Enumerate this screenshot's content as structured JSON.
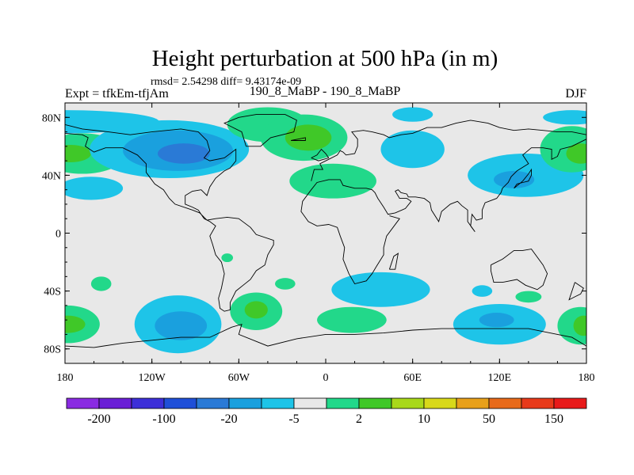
{
  "chart_data": {
    "type": "heatmap",
    "title": "Height perturbation at 500 hPa (in m)",
    "stats_line": "rmsd= 2.54298 diff= 9.43174e-09",
    "left_label": "Expt = tfkEm-tfjAm",
    "center_label": "190_8_MaBP - 190_8_MaBP",
    "right_label": "DJF",
    "x_ticks": [
      {
        "value": -180,
        "label": "180"
      },
      {
        "value": -120,
        "label": "120W"
      },
      {
        "value": -60,
        "label": "60W"
      },
      {
        "value": 0,
        "label": "0"
      },
      {
        "value": 60,
        "label": "60E"
      },
      {
        "value": 120,
        "label": "120E"
      },
      {
        "value": 180,
        "label": "180"
      }
    ],
    "y_ticks": [
      {
        "value": 80,
        "label": "80N"
      },
      {
        "value": 40,
        "label": "40N"
      },
      {
        "value": 0,
        "label": "0"
      },
      {
        "value": -40,
        "label": "40S"
      },
      {
        "value": -80,
        "label": "80S"
      }
    ],
    "xlim": [
      -180,
      180
    ],
    "ylim": [
      -90,
      90
    ],
    "colorbar": {
      "colors": [
        "#8a2be2",
        "#6a1fd6",
        "#3d2fd8",
        "#1f4fd8",
        "#2a7ad6",
        "#1aa0de",
        "#1ec4e8",
        "#e8e8e8",
        "#22d88a",
        "#40c828",
        "#a8d81a",
        "#d8d81a",
        "#e8a01a",
        "#e86a1a",
        "#e83a1a",
        "#e81a1a"
      ],
      "labels": [
        {
          "boundary": 1,
          "text": "-200"
        },
        {
          "boundary": 3,
          "text": "-100"
        },
        {
          "boundary": 5,
          "text": "-20"
        },
        {
          "boundary": 7,
          "text": "-5"
        },
        {
          "boundary": 9,
          "text": "2"
        },
        {
          "boundary": 11,
          "text": "10"
        },
        {
          "boundary": 13,
          "text": "50"
        },
        {
          "boundary": 15,
          "text": "150"
        }
      ]
    },
    "colors": {
      "background": "#e8e8e8",
      "neg_light": "#1ec4e8",
      "neg_mid": "#1aa0de",
      "neg_strong": "#2a7ad6",
      "pos_light": "#22d88a",
      "pos_mid": "#40c828"
    },
    "regions": [
      {
        "lon": -180,
        "lat": 77,
        "rx": 65,
        "ry": 8,
        "color": "#1ec4e8"
      },
      {
        "lon": -168,
        "lat": 55,
        "rx": 30,
        "ry": 14,
        "color": "#22d88a"
      },
      {
        "lon": -176,
        "lat": 55,
        "rx": 14,
        "ry": 6,
        "color": "#40c828"
      },
      {
        "lon": -108,
        "lat": 58,
        "rx": 55,
        "ry": 20,
        "color": "#1ec4e8"
      },
      {
        "lon": -102,
        "lat": 57,
        "rx": 38,
        "ry": 14,
        "color": "#1aa0de"
      },
      {
        "lon": -98,
        "lat": 55,
        "rx": 18,
        "ry": 7,
        "color": "#2a7ad6"
      },
      {
        "lon": -162,
        "lat": 31,
        "rx": 22,
        "ry": 8,
        "color": "#1ec4e8"
      },
      {
        "lon": -40,
        "lat": 75,
        "rx": 28,
        "ry": 12,
        "color": "#22d88a"
      },
      {
        "lon": -15,
        "lat": 66,
        "rx": 30,
        "ry": 16,
        "color": "#22d88a"
      },
      {
        "lon": -12,
        "lat": 66,
        "rx": 16,
        "ry": 9,
        "color": "#40c828"
      },
      {
        "lon": 5,
        "lat": 36,
        "rx": 30,
        "ry": 12,
        "color": "#22d88a"
      },
      {
        "lon": 60,
        "lat": 82,
        "rx": 14,
        "ry": 5,
        "color": "#1ec4e8"
      },
      {
        "lon": 60,
        "lat": 58,
        "rx": 22,
        "ry": 13,
        "color": "#1ec4e8"
      },
      {
        "lon": 138,
        "lat": 40,
        "rx": 40,
        "ry": 15,
        "color": "#1ec4e8"
      },
      {
        "lon": 130,
        "lat": 37,
        "rx": 14,
        "ry": 6,
        "color": "#1aa0de"
      },
      {
        "lon": 170,
        "lat": 58,
        "rx": 22,
        "ry": 16,
        "color": "#22d88a"
      },
      {
        "lon": 176,
        "lat": 55,
        "rx": 10,
        "ry": 7,
        "color": "#40c828"
      },
      {
        "lon": 170,
        "lat": 80,
        "rx": 20,
        "ry": 5,
        "color": "#1ec4e8"
      },
      {
        "lon": -155,
        "lat": -35,
        "rx": 7,
        "ry": 5,
        "color": "#22d88a"
      },
      {
        "lon": -178,
        "lat": -63,
        "rx": 22,
        "ry": 13,
        "color": "#22d88a"
      },
      {
        "lon": -178,
        "lat": -63,
        "rx": 12,
        "ry": 6,
        "color": "#40c828"
      },
      {
        "lon": -102,
        "lat": -63,
        "rx": 30,
        "ry": 20,
        "color": "#1ec4e8"
      },
      {
        "lon": -100,
        "lat": -64,
        "rx": 18,
        "ry": 10,
        "color": "#1aa0de"
      },
      {
        "lon": -48,
        "lat": -54,
        "rx": 18,
        "ry": 13,
        "color": "#22d88a"
      },
      {
        "lon": -48,
        "lat": -53,
        "rx": 8,
        "ry": 6,
        "color": "#40c828"
      },
      {
        "lon": -68,
        "lat": -17,
        "rx": 4,
        "ry": 3,
        "color": "#22d88a"
      },
      {
        "lon": -28,
        "lat": -35,
        "rx": 7,
        "ry": 4,
        "color": "#22d88a"
      },
      {
        "lon": 38,
        "lat": -39,
        "rx": 34,
        "ry": 12,
        "color": "#1ec4e8"
      },
      {
        "lon": 18,
        "lat": -60,
        "rx": 24,
        "ry": 9,
        "color": "#22d88a"
      },
      {
        "lon": 120,
        "lat": -63,
        "rx": 32,
        "ry": 14,
        "color": "#1ec4e8"
      },
      {
        "lon": 118,
        "lat": -60,
        "rx": 12,
        "ry": 5,
        "color": "#1aa0de"
      },
      {
        "lon": 108,
        "lat": -40,
        "rx": 7,
        "ry": 4,
        "color": "#1ec4e8"
      },
      {
        "lon": 140,
        "lat": -44,
        "rx": 9,
        "ry": 4,
        "color": "#22d88a"
      },
      {
        "lon": 176,
        "lat": -64,
        "rx": 16,
        "ry": 13,
        "color": "#22d88a"
      },
      {
        "lon": 178,
        "lat": -64,
        "rx": 7,
        "ry": 7,
        "color": "#40c828"
      }
    ],
    "coastlines": [
      [
        [
          -180,
          75
        ],
        [
          -168,
          72
        ],
        [
          -150,
          70
        ],
        [
          -135,
          68
        ],
        [
          -120,
          70
        ],
        [
          -100,
          72
        ],
        [
          -88,
          70
        ],
        [
          -82,
          64
        ],
        [
          -80,
          57
        ],
        [
          -84,
          52
        ],
        [
          -80,
          50
        ],
        [
          -70,
          52
        ],
        [
          -62,
          58
        ],
        [
          -62,
          50
        ],
        [
          -66,
          45
        ],
        [
          -70,
          43
        ],
        [
          -76,
          38
        ],
        [
          -80,
          32
        ],
        [
          -82,
          26
        ],
        [
          -86,
          30
        ],
        [
          -92,
          29
        ],
        [
          -97,
          26
        ],
        [
          -97,
          20
        ],
        [
          -92,
          18
        ],
        [
          -88,
          16
        ],
        [
          -84,
          10
        ],
        [
          -80,
          8
        ],
        [
          -76,
          5
        ],
        [
          -80,
          -2
        ],
        [
          -78,
          -8
        ],
        [
          -76,
          -15
        ],
        [
          -72,
          -20
        ],
        [
          -70,
          -28
        ],
        [
          -72,
          -38
        ],
        [
          -74,
          -45
        ],
        [
          -73,
          -52
        ],
        [
          -70,
          -54
        ],
        [
          -66,
          -53
        ],
        [
          -66,
          -48
        ],
        [
          -62,
          -40
        ],
        [
          -57,
          -36
        ],
        [
          -52,
          -32
        ],
        [
          -48,
          -26
        ],
        [
          -42,
          -22
        ],
        [
          -40,
          -15
        ],
        [
          -36,
          -8
        ],
        [
          -36,
          -5
        ],
        [
          -48,
          -1
        ],
        [
          -52,
          4
        ],
        [
          -60,
          10
        ],
        [
          -68,
          11
        ],
        [
          -76,
          10
        ],
        [
          -82,
          9
        ],
        [
          -87,
          14
        ],
        [
          -92,
          16
        ],
        [
          -104,
          20
        ],
        [
          -108,
          24
        ],
        [
          -112,
          30
        ],
        [
          -118,
          34
        ],
        [
          -124,
          42
        ],
        [
          -124,
          48
        ],
        [
          -130,
          54
        ],
        [
          -140,
          59
        ],
        [
          -152,
          59
        ],
        [
          -160,
          56
        ],
        [
          -166,
          60
        ],
        [
          -164,
          66
        ],
        [
          -168,
          68
        ],
        [
          -180,
          69
        ]
      ],
      [
        [
          -55,
          60
        ],
        [
          -45,
          60
        ],
        [
          -38,
          66
        ],
        [
          -22,
          70
        ],
        [
          -20,
          78
        ],
        [
          -28,
          82
        ],
        [
          -48,
          82
        ],
        [
          -60,
          80
        ],
        [
          -70,
          76
        ],
        [
          -58,
          70
        ],
        [
          -55,
          60
        ]
      ],
      [
        [
          -10,
          36
        ],
        [
          -8,
          44
        ],
        [
          -2,
          44
        ],
        [
          -4,
          48
        ],
        [
          2,
          51
        ],
        [
          8,
          54
        ],
        [
          10,
          57
        ],
        [
          12,
          56
        ],
        [
          14,
          54
        ],
        [
          20,
          55
        ],
        [
          22,
          60
        ],
        [
          22,
          65
        ],
        [
          18,
          70
        ],
        [
          26,
          71
        ],
        [
          32,
          70
        ],
        [
          40,
          68
        ],
        [
          44,
          66
        ],
        [
          52,
          68
        ],
        [
          60,
          69
        ],
        [
          70,
          73
        ],
        [
          80,
          73
        ],
        [
          90,
          76
        ],
        [
          100,
          78
        ],
        [
          112,
          76
        ],
        [
          120,
          73
        ],
        [
          130,
          71
        ],
        [
          140,
          72
        ],
        [
          150,
          71
        ],
        [
          160,
          70
        ],
        [
          170,
          70
        ],
        [
          180,
          68
        ]
      ],
      [
        [
          180,
          65
        ],
        [
          170,
          60
        ],
        [
          162,
          58
        ],
        [
          160,
          53
        ],
        [
          156,
          51
        ],
        [
          156,
          58
        ],
        [
          150,
          59
        ],
        [
          142,
          59
        ],
        [
          136,
          54
        ],
        [
          140,
          48
        ],
        [
          132,
          43
        ],
        [
          128,
          39
        ],
        [
          126,
          35
        ],
        [
          122,
          31
        ],
        [
          121,
          28
        ],
        [
          118,
          24
        ],
        [
          110,
          21
        ],
        [
          108,
          16
        ],
        [
          108,
          10
        ],
        [
          104,
          9
        ],
        [
          101,
          13
        ],
        [
          100,
          5
        ],
        [
          103,
          1
        ],
        [
          98,
          8
        ],
        [
          98,
          16
        ],
        [
          94,
          19
        ],
        [
          91,
          22
        ],
        [
          86,
          20
        ],
        [
          80,
          15
        ],
        [
          78,
          8
        ],
        [
          73,
          16
        ],
        [
          72,
          21
        ],
        [
          68,
          24
        ],
        [
          62,
          25
        ],
        [
          57,
          25
        ],
        [
          56,
          27
        ],
        [
          52,
          28
        ],
        [
          50,
          30
        ],
        [
          48,
          29
        ],
        [
          51,
          24
        ],
        [
          56,
          24
        ],
        [
          59,
          22
        ],
        [
          55,
          17
        ],
        [
          48,
          14
        ],
        [
          43,
          13
        ],
        [
          40,
          18
        ],
        [
          36,
          24
        ],
        [
          34,
          28
        ],
        [
          32,
          30
        ],
        [
          28,
          31
        ],
        [
          20,
          31
        ],
        [
          12,
          33
        ],
        [
          10,
          37
        ],
        [
          2,
          37
        ],
        [
          -6,
          35
        ],
        [
          -10,
          30
        ],
        [
          -16,
          22
        ],
        [
          -17,
          15
        ],
        [
          -12,
          8
        ],
        [
          -6,
          5
        ],
        [
          2,
          6
        ],
        [
          8,
          4
        ],
        [
          10,
          -2
        ],
        [
          13,
          -10
        ],
        [
          12,
          -18
        ],
        [
          16,
          -28
        ],
        [
          20,
          -35
        ],
        [
          28,
          -33
        ],
        [
          32,
          -28
        ],
        [
          35,
          -23
        ],
        [
          40,
          -15
        ],
        [
          40,
          -10
        ],
        [
          42,
          -2
        ],
        [
          51,
          10
        ],
        [
          44,
          12
        ]
      ],
      [
        [
          44,
          -25
        ],
        [
          47,
          -16
        ],
        [
          50,
          -14
        ],
        [
          48,
          -25
        ],
        [
          44,
          -25
        ]
      ],
      [
        [
          114,
          -22
        ],
        [
          114,
          -26
        ],
        [
          116,
          -34
        ],
        [
          122,
          -34
        ],
        [
          132,
          -32
        ],
        [
          138,
          -36
        ],
        [
          146,
          -39
        ],
        [
          150,
          -36
        ],
        [
          153,
          -28
        ],
        [
          150,
          -22
        ],
        [
          142,
          -11
        ],
        [
          136,
          -12
        ],
        [
          130,
          -12
        ],
        [
          122,
          -18
        ],
        [
          114,
          -22
        ]
      ],
      [
        [
          -180,
          -78
        ],
        [
          -160,
          -79
        ],
        [
          -140,
          -76
        ],
        [
          -120,
          -74
        ],
        [
          -100,
          -72
        ],
        [
          -80,
          -72
        ],
        [
          -65,
          -65
        ],
        [
          -58,
          -63
        ],
        [
          -60,
          -70
        ],
        [
          -40,
          -78
        ],
        [
          -20,
          -73
        ],
        [
          0,
          -70
        ],
        [
          20,
          -70
        ],
        [
          40,
          -69
        ],
        [
          60,
          -67
        ],
        [
          80,
          -66
        ],
        [
          100,
          -66
        ],
        [
          120,
          -66
        ],
        [
          140,
          -66
        ],
        [
          160,
          -70
        ],
        [
          170,
          -72
        ],
        [
          180,
          -78
        ]
      ],
      [
        [
          172,
          -34
        ],
        [
          178,
          -38
        ],
        [
          176,
          -42
        ],
        [
          172,
          -44
        ],
        [
          168,
          -46
        ],
        [
          172,
          -34
        ]
      ],
      [
        [
          -10,
          52
        ],
        [
          -6,
          54
        ],
        [
          -3,
          58
        ],
        [
          0,
          55
        ],
        [
          2,
          52
        ],
        [
          -5,
          50
        ],
        [
          -10,
          52
        ]
      ],
      [
        [
          -24,
          64
        ],
        [
          -14,
          66
        ],
        [
          -14,
          64
        ],
        [
          -24,
          64
        ]
      ],
      [
        [
          130,
          31
        ],
        [
          132,
          34
        ],
        [
          136,
          35
        ],
        [
          140,
          36
        ],
        [
          142,
          40
        ],
        [
          142,
          44
        ],
        [
          140,
          41
        ],
        [
          136,
          36
        ],
        [
          130,
          31
        ]
      ]
    ]
  }
}
